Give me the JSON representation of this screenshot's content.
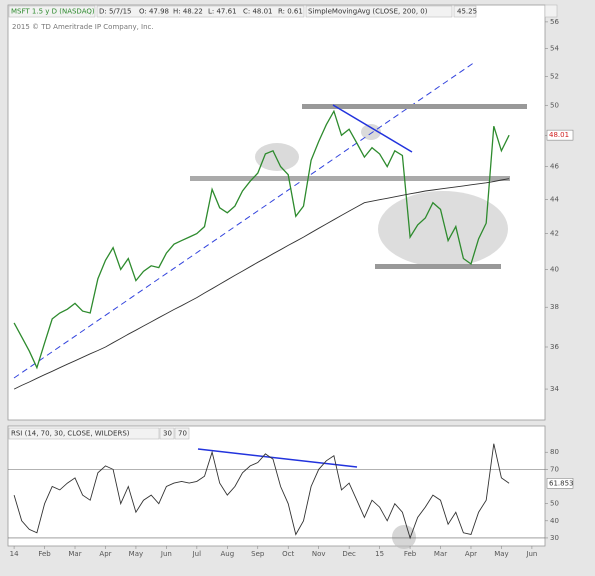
{
  "chart_data": [
    {
      "type": "line",
      "title": "MSFT 1.5 y D (NASDAQ)",
      "header": [
        "D: 5/7/15",
        "O: 47.98",
        "H: 48.22",
        "L: 47.61",
        "C: 48.01",
        "R: 0.61"
      ],
      "copyright": "2015 © TD Ameritrade IP Company, Inc.",
      "log_scale": true,
      "x": [
        0,
        0.25,
        0.5,
        0.75,
        1,
        1.25,
        1.5,
        1.75,
        2,
        2.25,
        2.5,
        2.75,
        3,
        3.25,
        3.5,
        3.75,
        4,
        4.25,
        4.5,
        4.75,
        5,
        5.25,
        5.5,
        5.75,
        6,
        6.25,
        6.5,
        6.75,
        7,
        7.25,
        7.5,
        7.75,
        8,
        8.25,
        8.5,
        8.75,
        9,
        9.25,
        9.5,
        9.75,
        10,
        10.25,
        10.5,
        10.75,
        11,
        11.25,
        11.5,
        11.75,
        12,
        12.25,
        12.5,
        12.75,
        13,
        13.25,
        13.5,
        13.75,
        14,
        14.25,
        14.5,
        14.75,
        15,
        15.25,
        15.5,
        15.75,
        16,
        16.25
      ],
      "series": [
        {
          "color": "#2e8b2e",
          "values": [
            37.2,
            36.5,
            35.8,
            35.0,
            36.2,
            37.4,
            37.7,
            37.9,
            38.2,
            37.8,
            37.7,
            39.5,
            40.5,
            41.2,
            40.0,
            40.6,
            39.4,
            39.9,
            40.2,
            40.1,
            40.9,
            41.4,
            41.6,
            41.8,
            42.0,
            42.4,
            44.6,
            43.5,
            43.2,
            43.6,
            44.5,
            45.1,
            45.6,
            46.8,
            47.0,
            46.0,
            45.5,
            43.0,
            43.6,
            46.4,
            47.6,
            48.7,
            49.6,
            48.0,
            48.4,
            47.5,
            46.6,
            47.2,
            46.8,
            46.0,
            47.0,
            46.7,
            41.8,
            42.5,
            42.9,
            43.8,
            43.4,
            41.6,
            42.4,
            40.6,
            40.3,
            41.7,
            42.6,
            48.6,
            47.0,
            48.01
          ]
        },
        {
          "name": "SimpleMovingAvg (CLOSE, 200, 0)",
          "color": "#333333",
          "values": [
            34.0,
            34.17,
            34.33,
            34.5,
            34.67,
            34.83,
            35.0,
            35.17,
            35.33,
            35.5,
            35.67,
            35.83,
            36.0,
            36.21,
            36.42,
            36.63,
            36.83,
            37.04,
            37.25,
            37.46,
            37.67,
            37.88,
            38.08,
            38.29,
            38.5,
            38.74,
            38.97,
            39.21,
            39.44,
            39.68,
            39.91,
            40.15,
            40.39,
            40.62,
            40.86,
            41.09,
            41.33,
            41.56,
            41.8,
            42.05,
            42.3,
            42.55,
            42.8,
            43.05,
            43.3,
            43.55,
            43.8,
            43.89,
            43.98,
            44.06,
            44.15,
            44.24,
            44.33,
            44.41,
            44.5,
            44.56,
            44.63,
            44.69,
            44.75,
            44.81,
            44.88,
            44.94,
            45.0,
            45.08,
            45.17,
            45.25
          ]
        }
      ],
      "xlim": [
        -0.2,
        17.43
      ],
      "ylim": [
        32.6,
        57.3
      ],
      "yticks": [
        34,
        36,
        38,
        40,
        42,
        44,
        46,
        48,
        50,
        52,
        54,
        56
      ]
    },
    {
      "type": "line",
      "x": [
        0,
        0.25,
        0.5,
        0.75,
        1,
        1.25,
        1.5,
        1.75,
        2,
        2.25,
        2.5,
        2.75,
        3,
        3.25,
        3.5,
        3.75,
        4,
        4.25,
        4.5,
        4.75,
        5,
        5.25,
        5.5,
        5.75,
        6,
        6.25,
        6.5,
        6.75,
        7,
        7.25,
        7.5,
        7.75,
        8,
        8.25,
        8.5,
        8.75,
        9,
        9.25,
        9.5,
        9.75,
        10,
        10.25,
        10.5,
        10.75,
        11,
        11.25,
        11.5,
        11.75,
        12,
        12.25,
        12.5,
        12.75,
        13,
        13.25,
        13.5,
        13.75,
        14,
        14.25,
        14.5,
        14.75,
        15,
        15.25,
        15.5,
        15.75,
        16,
        16.25
      ],
      "series": [
        {
          "name": "RSI (14, 70, 30, CLOSE, WILDERS)",
          "color": "#333333",
          "values": [
            55,
            40,
            35,
            33,
            50,
            60,
            58,
            62,
            65,
            55,
            52,
            68,
            72,
            70,
            50,
            60,
            45,
            52,
            55,
            50,
            60,
            62,
            63,
            62,
            63,
            66,
            80,
            62,
            55,
            60,
            68,
            72,
            74,
            79,
            76,
            60,
            50,
            32,
            40,
            60,
            70,
            75,
            78,
            58,
            62,
            52,
            42,
            52,
            48,
            40,
            50,
            45,
            30,
            42,
            48,
            55,
            52,
            38,
            45,
            33,
            32,
            45,
            52,
            85,
            65,
            61.853
          ]
        }
      ],
      "lower_level": 30,
      "upper_level": 70,
      "xlim": [
        -0.2,
        17.43
      ],
      "ylim": [
        25.3,
        95.3
      ],
      "yticks": [
        30,
        40,
        50,
        70,
        80
      ],
      "xticks": [
        {
          "value": 0,
          "label": "14"
        },
        {
          "value": 1,
          "label": "Feb"
        },
        {
          "value": 2,
          "label": "Mar"
        },
        {
          "value": 3,
          "label": "Apr"
        },
        {
          "value": 4,
          "label": "May"
        },
        {
          "value": 5,
          "label": "Jun"
        },
        {
          "value": 6,
          "label": "Jul"
        },
        {
          "value": 7,
          "label": "Aug"
        },
        {
          "value": 8,
          "label": "Sep"
        },
        {
          "value": 9,
          "label": "Oct"
        },
        {
          "value": 10,
          "label": "Nov"
        },
        {
          "value": 11,
          "label": "Dec"
        },
        {
          "value": 12,
          "label": "15"
        },
        {
          "value": 13,
          "label": "Feb"
        },
        {
          "value": 14,
          "label": "Mar"
        },
        {
          "value": 15,
          "label": "Apr"
        },
        {
          "value": 16,
          "label": "May"
        },
        {
          "value": 17,
          "label": "Jun"
        }
      ]
    }
  ]
}
